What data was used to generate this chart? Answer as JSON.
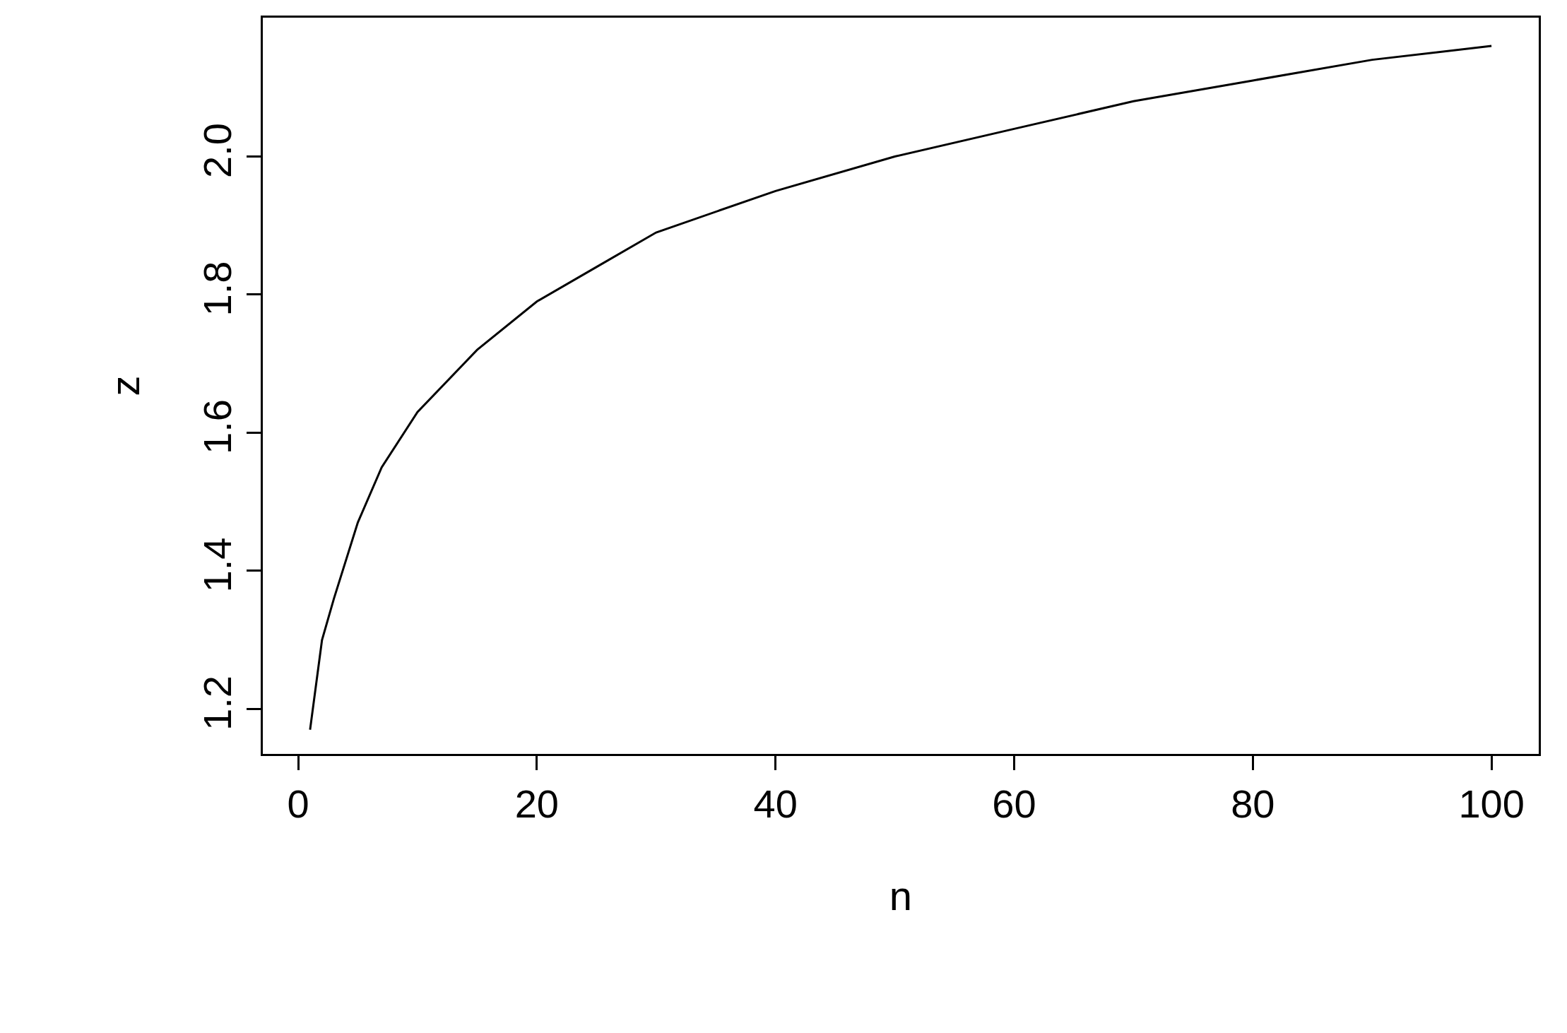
{
  "chart_data": {
    "type": "line",
    "xlabel": "n",
    "ylabel": "z",
    "x": [
      1,
      2,
      3,
      5,
      7,
      10,
      15,
      20,
      25,
      30,
      40,
      50,
      60,
      70,
      80,
      90,
      100
    ],
    "values": [
      1.17,
      1.3,
      1.36,
      1.47,
      1.55,
      1.63,
      1.72,
      1.79,
      1.84,
      1.89,
      1.95,
      2.0,
      2.04,
      2.08,
      2.11,
      2.14,
      2.16
    ],
    "color": "#000000",
    "xlim": [
      -2.96,
      103.96
    ],
    "ylim": [
      1.135,
      2.201
    ],
    "xticks": [
      0,
      20,
      40,
      60,
      80,
      100
    ],
    "yticks": [
      1.2,
      1.4,
      1.6,
      1.8,
      {
        "value": 2,
        "label": "2.0"
      }
    ],
    "marker": "none",
    "line_style": "solid"
  }
}
